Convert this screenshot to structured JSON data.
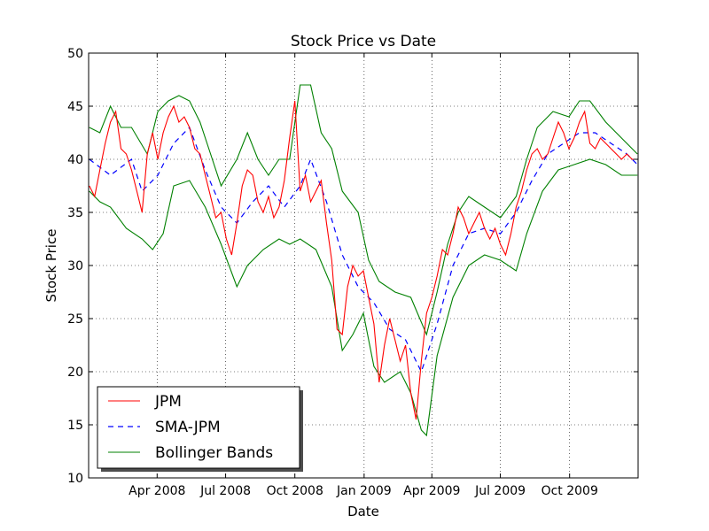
{
  "chart_data": {
    "type": "line",
    "title": "Stock Price vs Date",
    "xlabel": "Date",
    "ylabel": "Stock Price",
    "xlim": [
      "2008-01-01",
      "2009-12-31"
    ],
    "ylim": [
      10,
      50
    ],
    "grid": true,
    "legend_position": "lower-left",
    "yticks": [
      10,
      15,
      20,
      25,
      30,
      35,
      40,
      45,
      50
    ],
    "xticks": [
      {
        "date": "2008-04-01",
        "label": "Apr 2008"
      },
      {
        "date": "2008-07-01",
        "label": "Jul 2008"
      },
      {
        "date": "2008-10-01",
        "label": "Oct 2008"
      },
      {
        "date": "2009-01-01",
        "label": "Jan 2009"
      },
      {
        "date": "2009-04-01",
        "label": "Apr 2009"
      },
      {
        "date": "2009-07-01",
        "label": "Jul 2009"
      },
      {
        "date": "2009-10-01",
        "label": "Oct 2009"
      }
    ],
    "series": [
      {
        "name": "JPM",
        "color": "#ff0000",
        "style": "solid",
        "points": [
          [
            "2008-01-02",
            37.5
          ],
          [
            "2008-01-09",
            36.5
          ],
          [
            "2008-01-16",
            39.0
          ],
          [
            "2008-01-23",
            41.5
          ],
          [
            "2008-01-30",
            43.5
          ],
          [
            "2008-02-06",
            44.5
          ],
          [
            "2008-02-13",
            41.0
          ],
          [
            "2008-02-20",
            40.5
          ],
          [
            "2008-02-27",
            39.0
          ],
          [
            "2008-03-05",
            37.0
          ],
          [
            "2008-03-12",
            35.0
          ],
          [
            "2008-03-19",
            40.5
          ],
          [
            "2008-03-26",
            42.5
          ],
          [
            "2008-04-02",
            40.0
          ],
          [
            "2008-04-09",
            42.5
          ],
          [
            "2008-04-16",
            44.0
          ],
          [
            "2008-04-23",
            45.0
          ],
          [
            "2008-04-30",
            43.5
          ],
          [
            "2008-05-07",
            44.0
          ],
          [
            "2008-05-14",
            43.0
          ],
          [
            "2008-05-21",
            41.0
          ],
          [
            "2008-05-28",
            40.5
          ],
          [
            "2008-06-04",
            38.5
          ],
          [
            "2008-06-11",
            36.5
          ],
          [
            "2008-06-18",
            34.5
          ],
          [
            "2008-06-25",
            35.0
          ],
          [
            "2008-07-02",
            32.5
          ],
          [
            "2008-07-09",
            31.0
          ],
          [
            "2008-07-16",
            34.0
          ],
          [
            "2008-07-23",
            37.5
          ],
          [
            "2008-07-30",
            39.0
          ],
          [
            "2008-08-06",
            38.5
          ],
          [
            "2008-08-13",
            36.0
          ],
          [
            "2008-08-20",
            35.0
          ],
          [
            "2008-08-27",
            36.5
          ],
          [
            "2008-09-03",
            34.5
          ],
          [
            "2008-09-10",
            35.5
          ],
          [
            "2008-09-17",
            38.0
          ],
          [
            "2008-09-24",
            42.0
          ],
          [
            "2008-10-01",
            45.5
          ],
          [
            "2008-10-08",
            37.0
          ],
          [
            "2008-10-15",
            38.5
          ],
          [
            "2008-10-22",
            36.0
          ],
          [
            "2008-10-29",
            37.0
          ],
          [
            "2008-11-05",
            38.0
          ],
          [
            "2008-11-12",
            34.0
          ],
          [
            "2008-11-19",
            30.5
          ],
          [
            "2008-11-26",
            24.0
          ],
          [
            "2008-12-03",
            23.5
          ],
          [
            "2008-12-10",
            28.0
          ],
          [
            "2008-12-17",
            30.0
          ],
          [
            "2008-12-24",
            29.0
          ],
          [
            "2008-12-31",
            29.5
          ],
          [
            "2009-01-07",
            27.0
          ],
          [
            "2009-01-14",
            24.5
          ],
          [
            "2009-01-21",
            19.0
          ],
          [
            "2009-01-28",
            22.5
          ],
          [
            "2009-02-04",
            25.0
          ],
          [
            "2009-02-11",
            23.0
          ],
          [
            "2009-02-18",
            21.0
          ],
          [
            "2009-02-25",
            22.5
          ],
          [
            "2009-03-04",
            18.0
          ],
          [
            "2009-03-11",
            15.5
          ],
          [
            "2009-03-18",
            21.0
          ],
          [
            "2009-03-25",
            25.5
          ],
          [
            "2009-04-01",
            27.0
          ],
          [
            "2009-04-08",
            29.0
          ],
          [
            "2009-04-15",
            31.5
          ],
          [
            "2009-04-22",
            31.0
          ],
          [
            "2009-04-29",
            33.0
          ],
          [
            "2009-05-06",
            35.5
          ],
          [
            "2009-05-13",
            34.5
          ],
          [
            "2009-05-20",
            33.0
          ],
          [
            "2009-05-27",
            34.0
          ],
          [
            "2009-06-03",
            35.0
          ],
          [
            "2009-06-10",
            33.5
          ],
          [
            "2009-06-17",
            32.5
          ],
          [
            "2009-06-24",
            33.5
          ],
          [
            "2009-07-01",
            32.0
          ],
          [
            "2009-07-08",
            31.0
          ],
          [
            "2009-07-15",
            33.0
          ],
          [
            "2009-07-22",
            35.5
          ],
          [
            "2009-07-29",
            37.0
          ],
          [
            "2009-08-05",
            39.0
          ],
          [
            "2009-08-12",
            40.5
          ],
          [
            "2009-08-19",
            41.0
          ],
          [
            "2009-08-26",
            40.0
          ],
          [
            "2009-09-02",
            40.5
          ],
          [
            "2009-09-09",
            42.0
          ],
          [
            "2009-09-16",
            43.5
          ],
          [
            "2009-09-23",
            42.5
          ],
          [
            "2009-09-30",
            41.0
          ],
          [
            "2009-10-07",
            42.0
          ],
          [
            "2009-10-14",
            43.5
          ],
          [
            "2009-10-21",
            44.5
          ],
          [
            "2009-10-28",
            41.5
          ],
          [
            "2009-11-04",
            41.0
          ],
          [
            "2009-11-11",
            42.0
          ],
          [
            "2009-11-18",
            41.5
          ],
          [
            "2009-11-25",
            41.0
          ],
          [
            "2009-12-02",
            40.5
          ],
          [
            "2009-12-09",
            40.0
          ],
          [
            "2009-12-16",
            40.5
          ],
          [
            "2009-12-23",
            40.0
          ],
          [
            "2009-12-30",
            40.0
          ]
        ]
      },
      {
        "name": "SMA-JPM",
        "color": "#0000ff",
        "style": "dashed",
        "points": [
          [
            "2008-01-02",
            40.0
          ],
          [
            "2008-01-30",
            38.5
          ],
          [
            "2008-02-27",
            40.0
          ],
          [
            "2008-03-12",
            37.0
          ],
          [
            "2008-04-02",
            38.5
          ],
          [
            "2008-04-23",
            41.5
          ],
          [
            "2008-05-14",
            43.0
          ],
          [
            "2008-06-04",
            39.0
          ],
          [
            "2008-06-25",
            35.5
          ],
          [
            "2008-07-16",
            34.0
          ],
          [
            "2008-08-06",
            36.0
          ],
          [
            "2008-08-27",
            37.5
          ],
          [
            "2008-09-17",
            35.5
          ],
          [
            "2008-10-08",
            37.5
          ],
          [
            "2008-10-22",
            40.0
          ],
          [
            "2008-11-12",
            36.0
          ],
          [
            "2008-12-03",
            31.0
          ],
          [
            "2008-12-24",
            28.0
          ],
          [
            "2009-01-14",
            26.5
          ],
          [
            "2009-02-04",
            24.0
          ],
          [
            "2009-02-25",
            23.0
          ],
          [
            "2009-03-18",
            20.0
          ],
          [
            "2009-04-08",
            24.5
          ],
          [
            "2009-04-29",
            30.0
          ],
          [
            "2009-05-20",
            33.0
          ],
          [
            "2009-06-10",
            33.5
          ],
          [
            "2009-07-01",
            33.0
          ],
          [
            "2009-07-22",
            35.0
          ],
          [
            "2009-08-12",
            38.0
          ],
          [
            "2009-09-02",
            40.5
          ],
          [
            "2009-09-23",
            41.5
          ],
          [
            "2009-10-14",
            42.5
          ],
          [
            "2009-11-04",
            42.5
          ],
          [
            "2009-11-25",
            41.5
          ],
          [
            "2009-12-16",
            40.5
          ],
          [
            "2009-12-30",
            39.5
          ]
        ]
      },
      {
        "name": "Bollinger Bands",
        "color": "#008000",
        "style": "solid",
        "upper": [
          [
            "2008-01-02",
            43.0
          ],
          [
            "2008-01-16",
            42.5
          ],
          [
            "2008-01-30",
            45.0
          ],
          [
            "2008-02-13",
            43.0
          ],
          [
            "2008-02-27",
            43.0
          ],
          [
            "2008-03-19",
            40.5
          ],
          [
            "2008-04-02",
            44.5
          ],
          [
            "2008-04-16",
            45.5
          ],
          [
            "2008-04-30",
            46.0
          ],
          [
            "2008-05-14",
            45.5
          ],
          [
            "2008-05-28",
            43.5
          ],
          [
            "2008-06-11",
            40.5
          ],
          [
            "2008-06-25",
            37.5
          ],
          [
            "2008-07-16",
            40.0
          ],
          [
            "2008-07-30",
            42.5
          ],
          [
            "2008-08-13",
            40.0
          ],
          [
            "2008-08-27",
            38.5
          ],
          [
            "2008-09-10",
            40.0
          ],
          [
            "2008-09-24",
            40.0
          ],
          [
            "2008-10-08",
            47.0
          ],
          [
            "2008-10-22",
            47.0
          ],
          [
            "2008-11-05",
            42.5
          ],
          [
            "2008-11-19",
            41.0
          ],
          [
            "2008-12-03",
            37.0
          ],
          [
            "2008-12-24",
            35.0
          ],
          [
            "2009-01-07",
            30.5
          ],
          [
            "2009-01-21",
            28.5
          ],
          [
            "2009-02-11",
            27.5
          ],
          [
            "2009-03-04",
            27.0
          ],
          [
            "2009-03-25",
            23.5
          ],
          [
            "2009-04-08",
            27.5
          ],
          [
            "2009-04-22",
            32.0
          ],
          [
            "2009-05-06",
            35.0
          ],
          [
            "2009-05-20",
            36.5
          ],
          [
            "2009-06-10",
            35.5
          ],
          [
            "2009-07-01",
            34.5
          ],
          [
            "2009-07-22",
            36.5
          ],
          [
            "2009-08-05",
            40.0
          ],
          [
            "2009-08-19",
            43.0
          ],
          [
            "2009-09-09",
            44.5
          ],
          [
            "2009-09-30",
            44.0
          ],
          [
            "2009-10-14",
            45.5
          ],
          [
            "2009-10-28",
            45.5
          ],
          [
            "2009-11-18",
            43.5
          ],
          [
            "2009-12-09",
            42.0
          ],
          [
            "2009-12-30",
            40.5
          ]
        ],
        "lower": [
          [
            "2008-01-02",
            37.0
          ],
          [
            "2008-01-16",
            36.0
          ],
          [
            "2008-01-30",
            35.5
          ],
          [
            "2008-02-20",
            33.5
          ],
          [
            "2008-03-12",
            32.5
          ],
          [
            "2008-03-26",
            31.5
          ],
          [
            "2008-04-09",
            33.0
          ],
          [
            "2008-04-23",
            37.5
          ],
          [
            "2008-05-14",
            38.0
          ],
          [
            "2008-06-04",
            35.5
          ],
          [
            "2008-06-25",
            32.0
          ],
          [
            "2008-07-16",
            28.0
          ],
          [
            "2008-07-30",
            30.0
          ],
          [
            "2008-08-20",
            31.5
          ],
          [
            "2008-09-10",
            32.5
          ],
          [
            "2008-09-24",
            32.0
          ],
          [
            "2008-10-08",
            32.5
          ],
          [
            "2008-10-29",
            31.5
          ],
          [
            "2008-11-19",
            28.0
          ],
          [
            "2008-12-03",
            22.0
          ],
          [
            "2008-12-17",
            23.5
          ],
          [
            "2008-12-31",
            25.5
          ],
          [
            "2009-01-14",
            20.5
          ],
          [
            "2009-01-28",
            19.0
          ],
          [
            "2009-02-18",
            20.0
          ],
          [
            "2009-03-04",
            18.0
          ],
          [
            "2009-03-18",
            14.5
          ],
          [
            "2009-03-25",
            14.0
          ],
          [
            "2009-04-08",
            21.5
          ],
          [
            "2009-04-29",
            27.0
          ],
          [
            "2009-05-20",
            30.0
          ],
          [
            "2009-06-10",
            31.0
          ],
          [
            "2009-07-01",
            30.5
          ],
          [
            "2009-07-22",
            29.5
          ],
          [
            "2009-08-05",
            33.0
          ],
          [
            "2009-08-26",
            37.0
          ],
          [
            "2009-09-16",
            39.0
          ],
          [
            "2009-10-07",
            39.5
          ],
          [
            "2009-10-28",
            40.0
          ],
          [
            "2009-11-18",
            39.5
          ],
          [
            "2009-12-09",
            38.5
          ],
          [
            "2009-12-30",
            38.5
          ]
        ]
      }
    ]
  }
}
